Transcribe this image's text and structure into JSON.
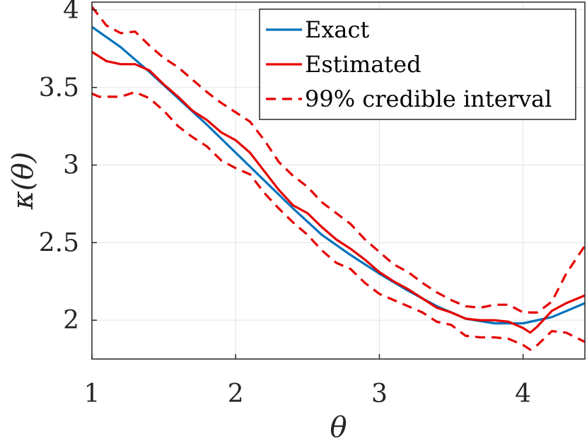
{
  "chart_data": {
    "type": "line",
    "xlabel": "θ",
    "ylabel": "κ(θ)",
    "xlim": [
      1,
      4.43
    ],
    "ylim": [
      1.75,
      4.05
    ],
    "xticks": [
      1,
      2,
      3,
      4
    ],
    "yticks": [
      2,
      2.5,
      3,
      3.5,
      4
    ],
    "xtick_labels": [
      "1",
      "2",
      "3",
      "4"
    ],
    "ytick_labels": [
      "2",
      "2.5",
      "3",
      "3.5",
      "4"
    ],
    "grid": true,
    "legend_position": "top-right",
    "series": [
      {
        "name": "Exact",
        "color": "#0072BD",
        "style": "solid",
        "x": [
          1.0,
          1.2,
          1.4,
          1.6,
          1.8,
          2.0,
          2.2,
          2.4,
          2.6,
          2.8,
          3.0,
          3.2,
          3.4,
          3.6,
          3.8,
          4.0,
          4.2,
          4.43
        ],
        "y": [
          3.89,
          3.76,
          3.6,
          3.43,
          3.26,
          3.08,
          2.9,
          2.72,
          2.55,
          2.42,
          2.3,
          2.19,
          2.09,
          2.01,
          1.98,
          1.98,
          2.02,
          2.11
        ]
      },
      {
        "name": "Estimated",
        "color": "#E60000",
        "style": "solid",
        "x": [
          1.0,
          1.1,
          1.2,
          1.3,
          1.4,
          1.5,
          1.6,
          1.7,
          1.8,
          1.9,
          2.0,
          2.1,
          2.2,
          2.3,
          2.4,
          2.5,
          2.6,
          2.7,
          2.8,
          2.9,
          3.0,
          3.1,
          3.2,
          3.3,
          3.4,
          3.5,
          3.6,
          3.7,
          3.8,
          3.9,
          4.0,
          4.05,
          4.1,
          4.2,
          4.3,
          4.43
        ],
        "y": [
          3.73,
          3.67,
          3.65,
          3.65,
          3.61,
          3.52,
          3.44,
          3.35,
          3.29,
          3.21,
          3.16,
          3.08,
          2.96,
          2.84,
          2.74,
          2.69,
          2.6,
          2.52,
          2.46,
          2.39,
          2.31,
          2.25,
          2.2,
          2.14,
          2.08,
          2.05,
          2.01,
          2.0,
          2.0,
          1.99,
          1.95,
          1.92,
          1.96,
          2.06,
          2.11,
          2.16
        ]
      },
      {
        "name": "99% credible interval",
        "color": "#E60000",
        "style": "dashed",
        "x": [
          1.0,
          1.1,
          1.2,
          1.3,
          1.4,
          1.5,
          1.6,
          1.7,
          1.8,
          1.9,
          2.0,
          2.1,
          2.2,
          2.3,
          2.4,
          2.5,
          2.6,
          2.7,
          2.8,
          2.9,
          3.0,
          3.1,
          3.2,
          3.3,
          3.4,
          3.5,
          3.6,
          3.7,
          3.8,
          3.9,
          4.0,
          4.1,
          4.2,
          4.3,
          4.43
        ],
        "y": [
          4.02,
          3.9,
          3.85,
          3.86,
          3.77,
          3.69,
          3.63,
          3.55,
          3.47,
          3.4,
          3.34,
          3.28,
          3.16,
          3.02,
          2.93,
          2.86,
          2.76,
          2.69,
          2.62,
          2.52,
          2.44,
          2.36,
          2.31,
          2.24,
          2.18,
          2.13,
          2.09,
          2.08,
          2.1,
          2.1,
          2.05,
          2.05,
          2.12,
          2.3,
          2.48
        ]
      },
      {
        "name": "",
        "color": "#E60000",
        "style": "dashed",
        "x": [
          1.0,
          1.05,
          1.1,
          1.2,
          1.3,
          1.4,
          1.5,
          1.6,
          1.7,
          1.8,
          1.9,
          2.0,
          2.1,
          2.2,
          2.3,
          2.4,
          2.5,
          2.6,
          2.7,
          2.8,
          2.9,
          3.0,
          3.1,
          3.2,
          3.3,
          3.4,
          3.5,
          3.6,
          3.7,
          3.8,
          3.9,
          4.0,
          4.05,
          4.1,
          4.2,
          4.3,
          4.43
        ],
        "y": [
          3.46,
          3.44,
          3.44,
          3.44,
          3.47,
          3.43,
          3.35,
          3.25,
          3.18,
          3.12,
          3.03,
          2.98,
          2.94,
          2.82,
          2.72,
          2.63,
          2.55,
          2.45,
          2.37,
          2.33,
          2.24,
          2.17,
          2.13,
          2.09,
          2.05,
          1.99,
          1.97,
          1.9,
          1.89,
          1.89,
          1.88,
          1.84,
          1.81,
          1.84,
          1.93,
          1.92,
          1.86
        ]
      }
    ]
  }
}
